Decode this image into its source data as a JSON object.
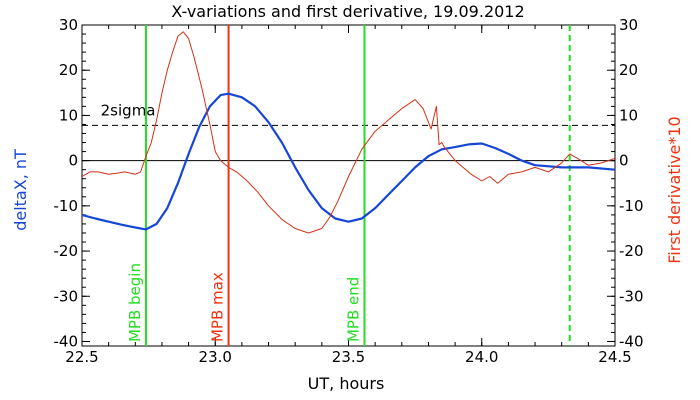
{
  "chart_data": {
    "type": "line",
    "title": "X-variations and first derivative, 19.09.2012",
    "xlabel": "UT, hours",
    "ylabel_left": "deltaX, nT",
    "ylabel_right": "First derivative*10",
    "xlim": [
      22.5,
      24.5
    ],
    "ylim": [
      -41,
      30
    ],
    "y2lim": [
      -41,
      30
    ],
    "x_ticks": [
      22.5,
      23.0,
      23.5,
      24.0,
      24.5
    ],
    "x_tick_labels": [
      "22.5",
      "23.0",
      "23.5",
      "24.0",
      "24.5"
    ],
    "y_ticks": [
      30,
      20,
      10,
      0,
      -10,
      -20,
      -30,
      -40
    ],
    "y_tick_labels": [
      "30",
      "20",
      "10",
      "0",
      "-10",
      "-20",
      "-30",
      "-40"
    ],
    "y2_tick_labels": [
      "30",
      "20",
      "10",
      "0",
      "-10",
      "-20",
      "-30",
      "-40"
    ],
    "colors": {
      "deltaX": "#1646d6",
      "derivative": "#d23214",
      "mpb_begin": "#22dd22",
      "mpb_max": "#ee3311",
      "mpb_end": "#22dd22",
      "dashed_green": "#22dd22",
      "axis_left": "#1646d6",
      "axis_right": "#ee3311"
    },
    "series": [
      {
        "key": "deltaX",
        "axis": "left",
        "x": [
          22.5,
          22.55,
          22.6,
          22.65,
          22.7,
          22.74,
          22.78,
          22.82,
          22.86,
          22.9,
          22.94,
          22.98,
          23.02,
          23.05,
          23.1,
          23.15,
          23.2,
          23.25,
          23.3,
          23.35,
          23.4,
          23.45,
          23.5,
          23.55,
          23.6,
          23.65,
          23.7,
          23.75,
          23.8,
          23.85,
          23.9,
          23.95,
          24.0,
          24.05,
          24.1,
          24.15,
          24.2,
          24.3,
          24.4,
          24.5
        ],
        "values": [
          -12,
          -12.8,
          -13.5,
          -14.2,
          -14.8,
          -15.2,
          -14.0,
          -10.5,
          -5.0,
          1.5,
          7.5,
          12.0,
          14.5,
          14.8,
          14.0,
          12.0,
          8.5,
          4.0,
          -1.5,
          -6.5,
          -10.5,
          -12.8,
          -13.5,
          -12.8,
          -10.5,
          -7.5,
          -4.5,
          -1.5,
          1.0,
          2.5,
          3.0,
          3.6,
          3.8,
          2.8,
          1.5,
          0.0,
          -1.0,
          -1.5,
          -1.5,
          -2.0
        ]
      },
      {
        "key": "derivative",
        "axis": "right",
        "x": [
          22.5,
          22.53,
          22.56,
          22.6,
          22.63,
          22.66,
          22.7,
          22.72,
          22.74,
          22.76,
          22.78,
          22.8,
          22.82,
          22.84,
          22.86,
          22.88,
          22.9,
          22.92,
          22.95,
          22.98,
          23.0,
          23.02,
          23.05,
          23.08,
          23.12,
          23.16,
          23.2,
          23.25,
          23.3,
          23.35,
          23.4,
          23.43,
          23.46,
          23.5,
          23.55,
          23.6,
          23.65,
          23.7,
          23.75,
          23.78,
          23.81,
          23.83,
          23.84,
          23.85,
          23.86,
          23.88,
          23.9,
          23.93,
          23.96,
          24.0,
          24.03,
          24.06,
          24.1,
          24.15,
          24.2,
          24.25,
          24.3,
          24.33,
          24.36,
          24.4,
          24.45,
          24.5
        ],
        "values": [
          -3.5,
          -2.5,
          -2.5,
          -3.0,
          -2.8,
          -2.5,
          -3.0,
          -2.5,
          1.0,
          4.0,
          9.0,
          15.0,
          20.0,
          24.0,
          27.5,
          28.5,
          27.0,
          23.0,
          16.0,
          8.0,
          2.0,
          0.0,
          -1.5,
          -2.5,
          -4.5,
          -7.0,
          -10.0,
          -13.0,
          -15.0,
          -16.0,
          -15.0,
          -12.5,
          -9.0,
          -3.5,
          2.5,
          6.5,
          9.0,
          11.5,
          13.5,
          11.5,
          7.0,
          12.0,
          3.5,
          4.0,
          3.0,
          1.5,
          0.0,
          -1.5,
          -3.0,
          -4.5,
          -3.5,
          -5.0,
          -3.0,
          -2.5,
          -1.5,
          -2.5,
          -0.5,
          1.5,
          0.5,
          -1.0,
          -0.5,
          0.5
        ]
      }
    ],
    "hlines": [
      {
        "key": "two_sigma",
        "y": 7.8,
        "style": "dashed",
        "label": "2sigma"
      },
      {
        "key": "zero",
        "y": 0,
        "style": "solid",
        "label": ""
      }
    ],
    "vlines": [
      {
        "key": "mpb_begin",
        "x": 22.74,
        "style": "solid",
        "label": "MPB begin"
      },
      {
        "key": "mpb_max",
        "x": 23.05,
        "style": "solid",
        "label": "MPB max"
      },
      {
        "key": "mpb_end",
        "x": 23.56,
        "style": "solid",
        "label": "MPB end"
      },
      {
        "key": "dashed_green",
        "x": 24.33,
        "style": "dashed",
        "label": ""
      }
    ],
    "grid": false,
    "legend": "none"
  }
}
